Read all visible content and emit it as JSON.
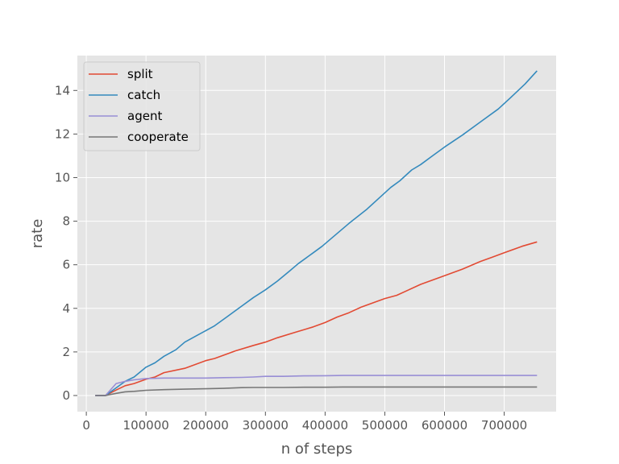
{
  "chart_data": {
    "type": "line",
    "xlabel": "n of steps",
    "ylabel": "rate",
    "xlim": [
      -15000,
      787000
    ],
    "ylim": [
      -0.74,
      15.6
    ],
    "xticks": [
      0,
      100000,
      200000,
      300000,
      400000,
      500000,
      600000,
      700000
    ],
    "yticks": [
      0,
      2,
      4,
      6,
      8,
      10,
      12,
      14
    ],
    "grid": true,
    "legend_position": "upper left",
    "series": [
      {
        "name": "split",
        "color": "#E24A33",
        "x": [
          15000,
          32000,
          50000,
          65000,
          80000,
          100000,
          115000,
          130000,
          165000,
          200000,
          215000,
          250000,
          280000,
          300000,
          320000,
          350000,
          380000,
          400000,
          420000,
          440000,
          460000,
          480000,
          500000,
          520000,
          540000,
          560000,
          580000,
          600000,
          630000,
          660000,
          680000,
          700000,
          730000,
          755000
        ],
        "y": [
          0.0,
          0.0,
          0.25,
          0.45,
          0.55,
          0.75,
          0.85,
          1.05,
          1.25,
          1.6,
          1.7,
          2.05,
          2.3,
          2.45,
          2.65,
          2.9,
          3.15,
          3.35,
          3.6,
          3.8,
          4.05,
          4.25,
          4.45,
          4.6,
          4.85,
          5.1,
          5.3,
          5.5,
          5.8,
          6.15,
          6.35,
          6.55,
          6.85,
          7.05
        ]
      },
      {
        "name": "catch",
        "color": "#348ABD",
        "x": [
          15000,
          32000,
          50000,
          65000,
          80000,
          100000,
          115000,
          130000,
          150000,
          165000,
          185000,
          215000,
          235000,
          260000,
          280000,
          300000,
          320000,
          340000,
          355000,
          380000,
          395000,
          410000,
          440000,
          470000,
          490000,
          510000,
          525000,
          545000,
          560000,
          580000,
          600000,
          630000,
          660000,
          690000,
          710000,
          735000,
          755000
        ],
        "y": [
          0.0,
          0.0,
          0.35,
          0.65,
          0.85,
          1.3,
          1.5,
          1.8,
          2.1,
          2.45,
          2.75,
          3.2,
          3.6,
          4.1,
          4.5,
          4.85,
          5.25,
          5.7,
          6.05,
          6.55,
          6.85,
          7.2,
          7.9,
          8.55,
          9.05,
          9.55,
          9.85,
          10.35,
          10.6,
          11.0,
          11.4,
          11.95,
          12.55,
          13.15,
          13.65,
          14.3,
          14.9
        ]
      },
      {
        "name": "agent",
        "color": "#988ED5",
        "x": [
          15000,
          32000,
          50000,
          65000,
          80000,
          100000,
          130000,
          165000,
          200000,
          230000,
          260000,
          280000,
          300000,
          330000,
          365000,
          400000,
          430000,
          460000,
          500000,
          560000,
          600000,
          660000,
          700000,
          755000
        ],
        "y": [
          0.0,
          0.0,
          0.55,
          0.65,
          0.72,
          0.78,
          0.8,
          0.8,
          0.8,
          0.82,
          0.83,
          0.85,
          0.88,
          0.88,
          0.9,
          0.91,
          0.92,
          0.92,
          0.92,
          0.92,
          0.92,
          0.92,
          0.92,
          0.92
        ]
      },
      {
        "name": "cooperate",
        "color": "#777777",
        "x": [
          15000,
          32000,
          50000,
          65000,
          80000,
          100000,
          130000,
          165000,
          200000,
          230000,
          260000,
          280000,
          300000,
          330000,
          365000,
          400000,
          430000,
          460000,
          500000,
          560000,
          600000,
          660000,
          700000,
          755000
        ],
        "y": [
          0.0,
          0.0,
          0.1,
          0.17,
          0.19,
          0.24,
          0.27,
          0.29,
          0.31,
          0.33,
          0.36,
          0.37,
          0.37,
          0.37,
          0.38,
          0.38,
          0.39,
          0.39,
          0.39,
          0.39,
          0.39,
          0.39,
          0.39,
          0.39
        ]
      }
    ],
    "colors": {
      "plot_background": "#E5E5E5",
      "grid": "#FFFFFF",
      "tick_text": "#555555"
    }
  }
}
